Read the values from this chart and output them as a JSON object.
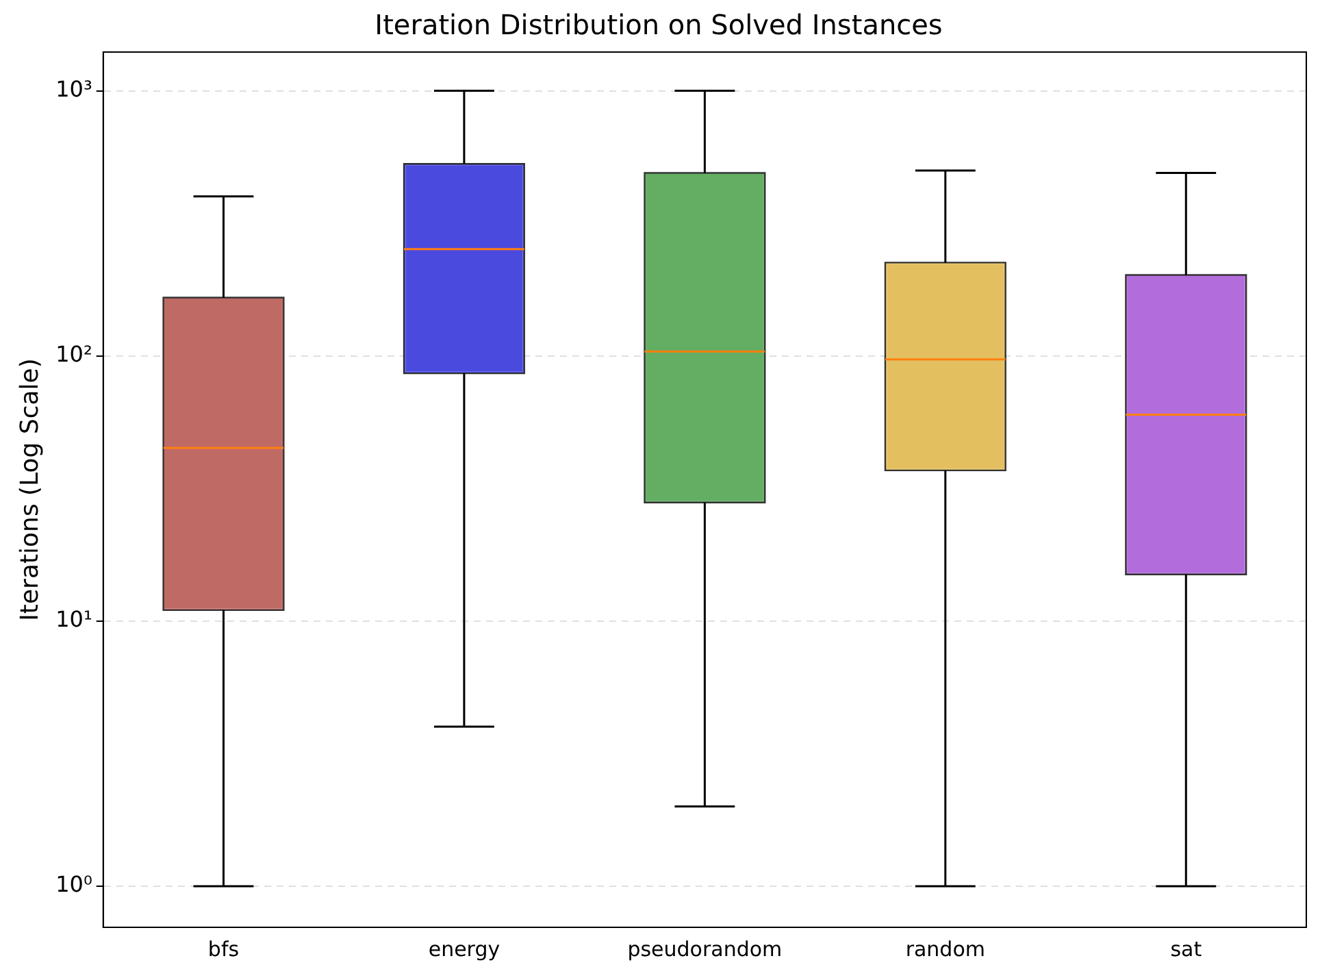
{
  "chart_data": {
    "type": "box",
    "title": "Iteration Distribution on Solved Instances",
    "ylabel": "Iterations (Log Scale)",
    "categories": [
      "bfs",
      "energy",
      "pseudorandom",
      "random",
      "sat"
    ],
    "boxes": [
      {
        "low": 1,
        "q1": 11,
        "median": 45,
        "q3": 166,
        "high": 400
      },
      {
        "low": 4,
        "q1": 86,
        "median": 253,
        "q3": 530,
        "high": 1000
      },
      {
        "low": 2,
        "q1": 28,
        "median": 104,
        "q3": 490,
        "high": 1000
      },
      {
        "low": 1,
        "q1": 37,
        "median": 97,
        "q3": 225,
        "high": 500
      },
      {
        "low": 1,
        "q1": 15,
        "median": 60,
        "q3": 202,
        "high": 490
      }
    ],
    "colors": [
      "#c06a66",
      "#4a4ade",
      "#63ae63",
      "#e4bf60",
      "#b36cdc"
    ],
    "log": "y",
    "ylim": [
      0.7,
      1400
    ],
    "yticks": [
      {
        "value": 1,
        "label": "10⁰"
      },
      {
        "value": 10,
        "label": "10¹"
      },
      {
        "value": 100,
        "label": "10²"
      },
      {
        "value": 1000,
        "label": "10³"
      }
    ],
    "grid": "y",
    "legend": false
  }
}
